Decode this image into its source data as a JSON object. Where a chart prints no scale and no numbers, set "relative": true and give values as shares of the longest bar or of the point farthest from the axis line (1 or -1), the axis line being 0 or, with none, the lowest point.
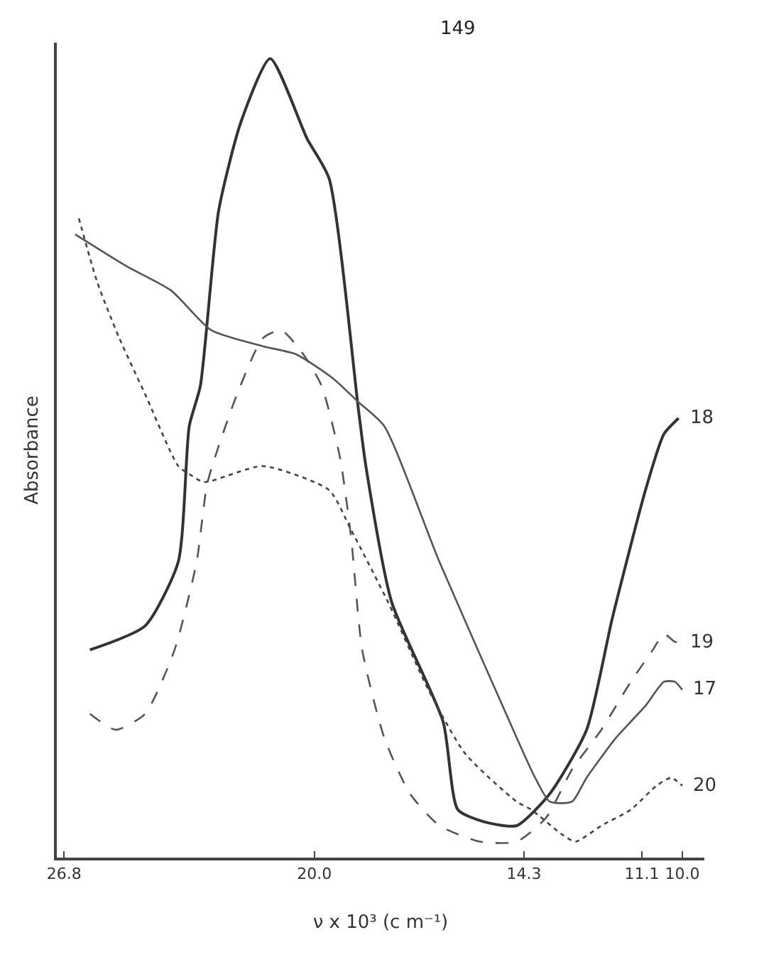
{
  "chart_data": {
    "type": "line",
    "relative": true,
    "xlabel": "ν x 10³ (c m⁻¹)",
    "ylabel": "Absorbance",
    "annotations": [
      "149"
    ],
    "xlim": [
      27.0,
      9.4
    ],
    "xticks": [
      26.8,
      {
        "value": 20.0,
        "label": "20.0"
      },
      14.3,
      11.1,
      {
        "value": 10.0,
        "label": "10.0"
      }
    ],
    "grid": false,
    "legend": false,
    "marker": "none",
    "tick_labels": "x",
    "series": [
      {
        "name": "18",
        "color": "#333333",
        "line_style": "solid",
        "x": [
          26.1,
          24.6,
          23.7,
          23.4,
          23.1,
          22.6,
          22.0,
          21.2,
          20.2,
          19.6,
          18.8,
          18.6,
          17.9,
          16.5,
          16.1,
          15.4,
          14.5,
          13.6,
          12.6,
          11.9,
          11.0,
          10.5,
          10.1
        ],
        "values": [
          0.26,
          0.29,
          0.37,
          0.54,
          0.59,
          0.81,
          0.92,
          1.0,
          0.9,
          0.85,
          0.56,
          0.49,
          0.32,
          0.17,
          0.06,
          0.045,
          0.04,
          0.08,
          0.16,
          0.3,
          0.46,
          0.53,
          0.55
        ]
      },
      {
        "name": "19",
        "color": "#555555",
        "line_style": "dashed",
        "x": [
          26.1,
          25.4,
          24.6,
          23.8,
          23.2,
          22.9,
          22.1,
          21.4,
          20.9,
          20.3,
          19.8,
          19.3,
          19.0,
          18.7,
          18.1,
          17.4,
          16.6,
          15.5,
          14.5,
          13.7,
          13.0,
          12.2,
          11.4,
          10.8,
          10.5,
          10.2,
          10.1
        ],
        "values": [
          0.18,
          0.16,
          0.18,
          0.26,
          0.37,
          0.47,
          0.58,
          0.65,
          0.66,
          0.63,
          0.59,
          0.5,
          0.4,
          0.26,
          0.15,
          0.08,
          0.04,
          0.02,
          0.02,
          0.05,
          0.11,
          0.16,
          0.22,
          0.26,
          0.28,
          0.27,
          0.27
        ]
      },
      {
        "name": "17",
        "color": "#555555",
        "line_style": "solid",
        "x": [
          26.5,
          25.1,
          23.9,
          22.8,
          21.4,
          20.5,
          19.5,
          18.8,
          18.1,
          16.6,
          14.5,
          14.0,
          13.6,
          13.0,
          12.6,
          11.8,
          11.0,
          10.5,
          10.2,
          10.0
        ],
        "values": [
          0.78,
          0.74,
          0.71,
          0.66,
          0.64,
          0.63,
          0.6,
          0.57,
          0.54,
          0.37,
          0.15,
          0.1,
          0.07,
          0.07,
          0.1,
          0.15,
          0.19,
          0.22,
          0.22,
          0.21
        ]
      },
      {
        "name": "20",
        "color": "#444444",
        "line_style": "dotted",
        "x": [
          26.4,
          25.9,
          25.3,
          24.6,
          23.7,
          23.4,
          23.0,
          21.4,
          19.6,
          19.0,
          18.0,
          16.9,
          15.9,
          14.5,
          14.1,
          13.3,
          12.9,
          12.2,
          11.4,
          10.7,
          10.3,
          10.0
        ],
        "values": [
          0.8,
          0.72,
          0.65,
          0.58,
          0.49,
          0.48,
          0.47,
          0.49,
          0.46,
          0.41,
          0.32,
          0.21,
          0.13,
          0.07,
          0.06,
          0.03,
          0.02,
          0.04,
          0.06,
          0.09,
          0.1,
          0.09
        ]
      }
    ]
  }
}
